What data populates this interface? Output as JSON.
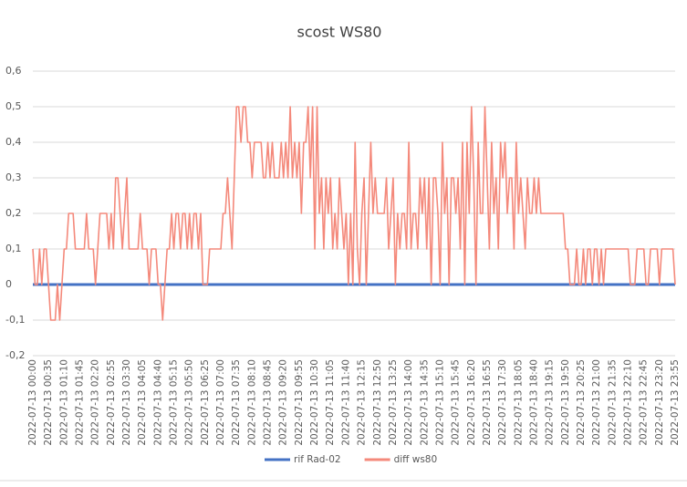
{
  "chart_data": {
    "type": "line",
    "title": "scost WS80",
    "categories": [
      "2022-07-13 00:00",
      null,
      null,
      null,
      null,
      null,
      null,
      "2022-07-13 00:35",
      null,
      null,
      null,
      null,
      null,
      null,
      "2022-07-13 01:10",
      null,
      null,
      null,
      null,
      null,
      null,
      "2022-07-13 01:45",
      null,
      null,
      null,
      null,
      null,
      null,
      "2022-07-13 02:20",
      null,
      null,
      null,
      null,
      null,
      null,
      "2022-07-13 02:55",
      null,
      null,
      null,
      null,
      null,
      null,
      "2022-07-13 03:30",
      null,
      null,
      null,
      null,
      null,
      null,
      "2022-07-13 04:05",
      null,
      null,
      null,
      null,
      null,
      null,
      "2022-07-13 04:40",
      null,
      null,
      null,
      null,
      null,
      null,
      "2022-07-13 05:15",
      null,
      null,
      null,
      null,
      null,
      null,
      "2022-07-13 05:50",
      null,
      null,
      null,
      null,
      null,
      null,
      "2022-07-13 06:25",
      null,
      null,
      null,
      null,
      null,
      null,
      "2022-07-13 07:00",
      null,
      null,
      null,
      null,
      null,
      null,
      "2022-07-13 07:35",
      null,
      null,
      null,
      null,
      null,
      null,
      "2022-07-13 08:10",
      null,
      null,
      null,
      null,
      null,
      null,
      "2022-07-13 08:45",
      null,
      null,
      null,
      null,
      null,
      null,
      "2022-07-13 09:20",
      null,
      null,
      null,
      null,
      null,
      null,
      "2022-07-13 09:55",
      null,
      null,
      null,
      null,
      null,
      null,
      "2022-07-13 10:30",
      null,
      null,
      null,
      null,
      null,
      null,
      "2022-07-13 11:05",
      null,
      null,
      null,
      null,
      null,
      null,
      "2022-07-13 11:40",
      null,
      null,
      null,
      null,
      null,
      null,
      "2022-07-13 12:15",
      null,
      null,
      null,
      null,
      null,
      null,
      "2022-07-13 12:50",
      null,
      null,
      null,
      null,
      null,
      null,
      "2022-07-13 13:25",
      null,
      null,
      null,
      null,
      null,
      null,
      "2022-07-13 14:00",
      null,
      null,
      null,
      null,
      null,
      null,
      "2022-07-13 14:35",
      null,
      null,
      null,
      null,
      null,
      null,
      "2022-07-13 15:10",
      null,
      null,
      null,
      null,
      null,
      null,
      "2022-07-13 15:45",
      null,
      null,
      null,
      null,
      null,
      null,
      "2022-07-13 16:20",
      null,
      null,
      null,
      null,
      null,
      null,
      "2022-07-13 16:55",
      null,
      null,
      null,
      null,
      null,
      null,
      "2022-07-13 17:30",
      null,
      null,
      null,
      null,
      null,
      null,
      "2022-07-13 18:05",
      null,
      null,
      null,
      null,
      null,
      null,
      "2022-07-13 18:40",
      null,
      null,
      null,
      null,
      null,
      null,
      "2022-07-13 19:15",
      null,
      null,
      null,
      null,
      null,
      null,
      "2022-07-13 19:50",
      null,
      null,
      null,
      null,
      null,
      null,
      "2022-07-13 20:25",
      null,
      null,
      null,
      null,
      null,
      null,
      "2022-07-13 21:00",
      null,
      null,
      null,
      null,
      null,
      null,
      "2022-07-13 21:35",
      null,
      null,
      null,
      null,
      null,
      null,
      "2022-07-13 22:10",
      null,
      null,
      null,
      null,
      null,
      null,
      "2022-07-13 22:45",
      null,
      null,
      null,
      null,
      null,
      null,
      "2022-07-13 23:20",
      null,
      null,
      null,
      null,
      null,
      null,
      "2022-07-13 23:55"
    ],
    "series": [
      {
        "name": "rif Rad-02",
        "color": "#4472c4",
        "values": [
          0,
          0,
          0,
          0,
          0,
          0,
          0,
          0,
          0,
          0,
          0,
          0,
          0,
          0,
          0,
          0,
          0,
          0,
          0,
          0,
          0,
          0,
          0,
          0,
          0,
          0,
          0,
          0,
          0,
          0,
          0,
          0,
          0,
          0,
          0,
          0,
          0,
          0,
          0,
          0,
          0,
          0,
          0,
          0,
          0,
          0,
          0,
          0,
          0,
          0,
          0,
          0,
          0,
          0,
          0,
          0,
          0,
          0,
          0,
          0,
          0,
          0,
          0,
          0,
          0,
          0,
          0,
          0,
          0,
          0,
          0,
          0,
          0,
          0,
          0,
          0,
          0,
          0,
          0,
          0,
          0,
          0,
          0,
          0,
          0,
          0,
          0,
          0,
          0,
          0,
          0,
          0,
          0,
          0,
          0,
          0,
          0,
          0,
          0,
          0,
          0,
          0,
          0,
          0,
          0,
          0,
          0,
          0,
          0,
          0,
          0,
          0,
          0,
          0,
          0,
          0,
          0,
          0,
          0,
          0,
          0,
          0,
          0,
          0,
          0,
          0,
          0,
          0,
          0,
          0,
          0,
          0,
          0,
          0,
          0,
          0,
          0,
          0,
          0,
          0,
          0,
          0,
          0,
          0,
          0,
          0,
          0,
          0,
          0,
          0,
          0,
          0,
          0,
          0,
          0,
          0,
          0,
          0,
          0,
          0,
          0,
          0,
          0,
          0,
          0,
          0,
          0,
          0,
          0,
          0,
          0,
          0,
          0,
          0,
          0,
          0,
          0,
          0,
          0,
          0,
          0,
          0,
          0,
          0,
          0,
          0,
          0,
          0,
          0,
          0,
          0,
          0,
          0,
          0,
          0,
          0,
          0,
          0,
          0,
          0,
          0,
          0,
          0,
          0,
          0,
          0,
          0,
          0,
          0,
          0,
          0,
          0,
          0,
          0,
          0,
          0,
          0,
          0,
          0,
          0,
          0,
          0,
          0,
          0,
          0,
          0,
          0,
          0,
          0,
          0,
          0,
          0,
          0,
          0,
          0,
          0,
          0,
          0,
          0,
          0,
          0,
          0,
          0,
          0,
          0,
          0,
          0,
          0,
          0,
          0,
          0,
          0,
          0,
          0,
          0,
          0,
          0,
          0,
          0,
          0,
          0,
          0,
          0,
          0,
          0,
          0,
          0,
          0,
          0,
          0,
          0,
          0,
          0,
          0,
          0,
          0,
          0,
          0,
          0,
          0,
          0,
          0,
          0,
          0,
          0,
          0,
          0,
          0
        ]
      },
      {
        "name": "diff ws80",
        "color": "#f4897b",
        "values": [
          0.1,
          0,
          0,
          0.1,
          0,
          0.1,
          0.1,
          0,
          -0.1,
          -0.1,
          -0.1,
          0,
          -0.1,
          0,
          0.1,
          0.1,
          0.2,
          0.2,
          0.2,
          0.1,
          0.1,
          0.1,
          0.1,
          0.1,
          0.2,
          0.1,
          0.1,
          0.1,
          0,
          0.1,
          0.2,
          0.2,
          0.2,
          0.2,
          0.1,
          0.2,
          0.1,
          0.3,
          0.3,
          0.2,
          0.1,
          0.2,
          0.3,
          0.1,
          0.1,
          0.1,
          0.1,
          0.1,
          0.2,
          0.1,
          0.1,
          0.1,
          0,
          0.1,
          0.1,
          0.1,
          0,
          0,
          -0.1,
          0,
          0.1,
          0.1,
          0.2,
          0.1,
          0.2,
          0.2,
          0.1,
          0.2,
          0.2,
          0.1,
          0.2,
          0.1,
          0.2,
          0.2,
          0.1,
          0.2,
          0,
          0,
          0,
          0.1,
          0.1,
          0.1,
          0.1,
          0.1,
          0.1,
          0.2,
          0.2,
          0.3,
          0.2,
          0.1,
          0.3,
          0.5,
          0.5,
          0.4,
          0.5,
          0.5,
          0.4,
          0.4,
          0.3,
          0.4,
          0.4,
          0.4,
          0.4,
          0.3,
          0.3,
          0.4,
          0.3,
          0.4,
          0.3,
          0.3,
          0.3,
          0.4,
          0.3,
          0.4,
          0.3,
          0.5,
          0.3,
          0.4,
          0.3,
          0.4,
          0.2,
          0.4,
          0.4,
          0.5,
          0.3,
          0.5,
          0.1,
          0.5,
          0.2,
          0.3,
          0.1,
          0.3,
          0.2,
          0.3,
          0.1,
          0.2,
          0.1,
          0.3,
          0.2,
          0.1,
          0.2,
          0,
          0.2,
          0,
          0.4,
          0.1,
          0,
          0.2,
          0.3,
          0,
          0.2,
          0.4,
          0.2,
          0.3,
          0.2,
          0.2,
          0.2,
          0.2,
          0.3,
          0.1,
          0.2,
          0.3,
          0,
          0.2,
          0.1,
          0.2,
          0.2,
          0.1,
          0.4,
          0.1,
          0.2,
          0.2,
          0.1,
          0.3,
          0.2,
          0.3,
          0.1,
          0.3,
          0,
          0.3,
          0.3,
          0.2,
          0,
          0.4,
          0.2,
          0.3,
          0,
          0.3,
          0.3,
          0.2,
          0.3,
          0.1,
          0.4,
          0,
          0.4,
          0.2,
          0.5,
          0.3,
          0,
          0.4,
          0.2,
          0.2,
          0.5,
          0.3,
          0.1,
          0.4,
          0.2,
          0.3,
          0.1,
          0.4,
          0.3,
          0.4,
          0.2,
          0.3,
          0.3,
          0.1,
          0.4,
          0.2,
          0.3,
          0.2,
          0.1,
          0.3,
          0.2,
          0.2,
          0.3,
          0.2,
          0.3,
          0.2,
          0.2,
          0.2,
          0.2,
          0.2,
          0.2,
          0.2,
          0.2,
          0.2,
          0.2,
          0.2,
          0.1,
          0.1,
          0,
          0,
          0,
          0.1,
          0,
          0,
          0.1,
          0,
          0.1,
          0.1,
          0,
          0.1,
          0.1,
          0,
          0.1,
          0,
          0.1,
          0.1,
          0.1,
          0.1,
          0.1,
          0.1,
          0.1,
          0.1,
          0.1,
          0.1,
          0.1,
          0,
          0,
          0,
          0.1,
          0.1,
          0.1,
          0.1,
          0,
          0,
          0.1,
          0.1,
          0.1,
          0.1,
          0,
          0.1,
          0.1,
          0.1,
          0.1,
          0.1,
          0.1,
          0
        ]
      }
    ],
    "ylim": [
      -0.2,
      0.6
    ],
    "yticks": [
      {
        "value": 0.6,
        "label": "0,6"
      },
      {
        "value": 0.5,
        "label": "0,5"
      },
      {
        "value": 0.4,
        "label": "0,4"
      },
      {
        "value": 0.3,
        "label": "0,3"
      },
      {
        "value": 0.2,
        "label": "0,2"
      },
      {
        "value": 0.1,
        "label": "0,1"
      },
      0,
      {
        "value": -0.1,
        "label": "-0,1"
      },
      {
        "value": -0.2,
        "label": "-0,2"
      }
    ],
    "grid": true,
    "legend": "bottom"
  }
}
